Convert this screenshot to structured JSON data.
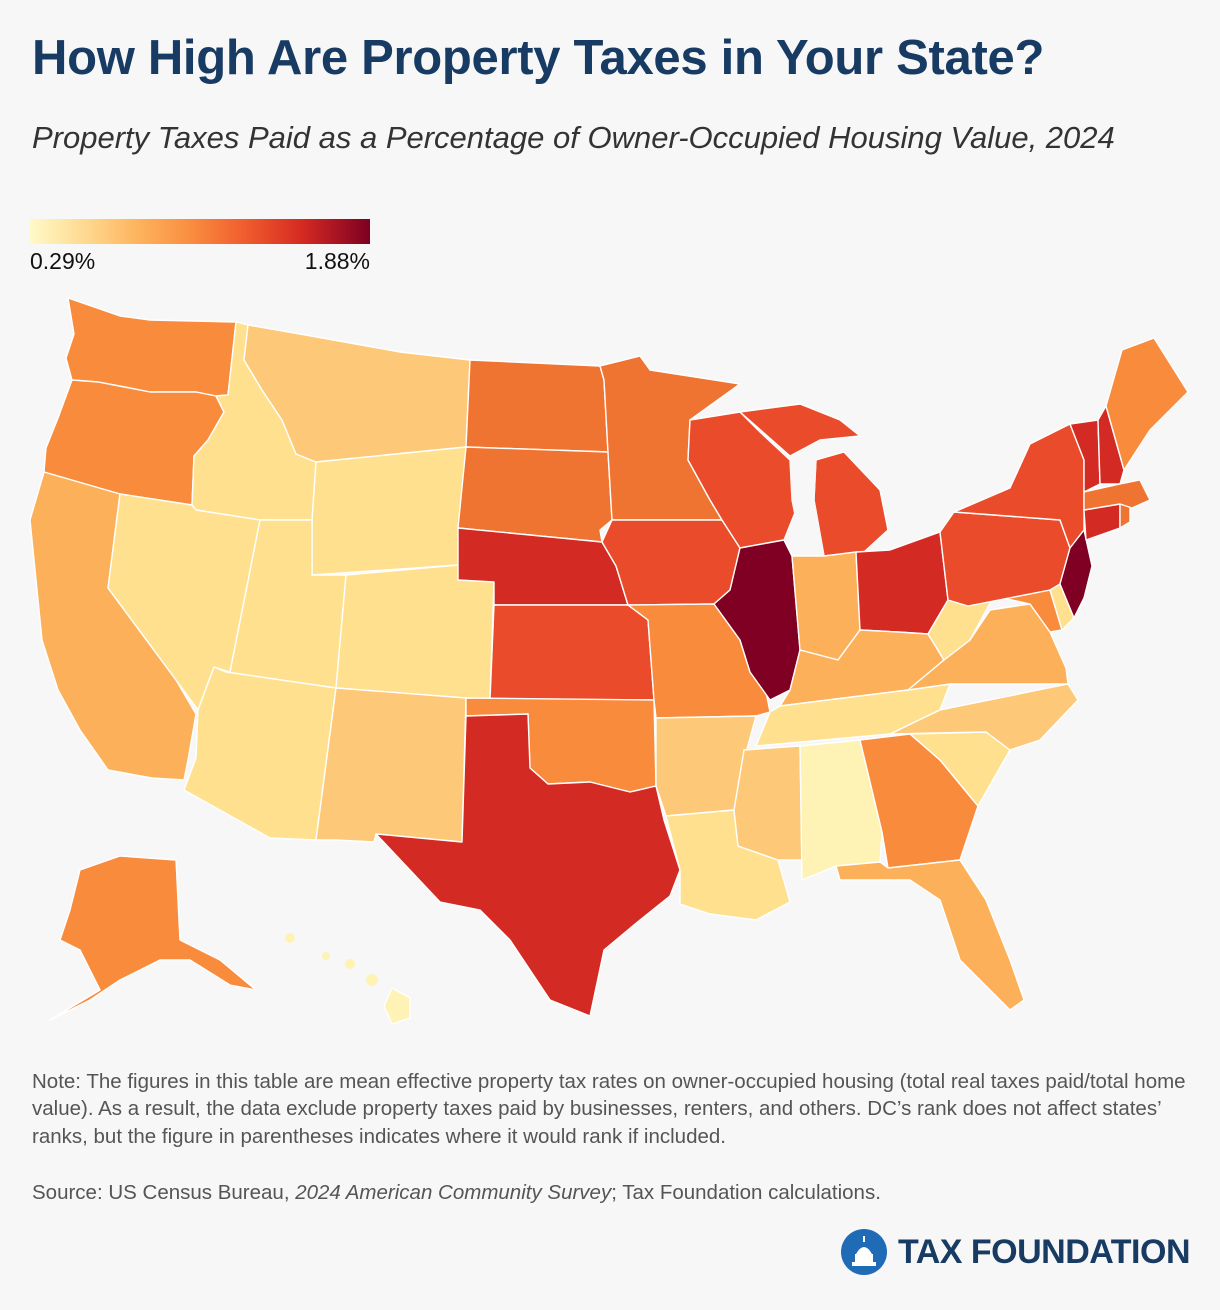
{
  "title": "How High Are Property Taxes in Your State?",
  "subtitle": "Property Taxes Paid as a Percentage of Owner-Occupied Housing Value, 2024",
  "legend": {
    "min_label": "0.29%",
    "max_label": "1.88%"
  },
  "note": "Note: The figures in this table are mean effective property tax rates on owner-occupied housing (total real taxes paid/total home value). As a result, the data exclude property taxes paid by businesses, renters, and others. DC’s rank does not affect states’ ranks, but the figure in parentheses indicates where it would rank if included.",
  "source": {
    "prefix": "Source: US Census Bureau, ",
    "survey": "2024 American Community Survey",
    "suffix": "; Tax Foundation calculations."
  },
  "logo": {
    "text": "TAX FOUNDATION"
  },
  "colors": {
    "title": "#173b63",
    "c0": "#fef3b4",
    "c1": "#fee08f",
    "c2": "#fdc877",
    "c3": "#fcb05a",
    "c4": "#f98b3c",
    "c5": "#f07431",
    "c6": "#ea4b2a",
    "c7": "#d42a24",
    "c8": "#7f0022"
  },
  "map_data": {
    "state_color_class": {
      "WA": "c4",
      "OR": "c4",
      "CA": "c3",
      "ID": "c1",
      "NV": "c1",
      "MT": "c2",
      "WY": "c1",
      "UT": "c1",
      "AZ": "c1",
      "CO": "c1",
      "NM": "c2",
      "ND": "c5",
      "SD": "c5",
      "NE": "c7",
      "KS": "c6",
      "OK": "c4",
      "TX": "c7",
      "MN": "c5",
      "IA": "c6",
      "MO": "c4",
      "AR": "c2",
      "LA": "c1",
      "WI": "c6",
      "IL": "c8",
      "MI": "c6",
      "IN": "c3",
      "OH": "c7",
      "KY": "c3",
      "TN": "c1",
      "MS": "c2",
      "AL": "c0",
      "GA": "c4",
      "FL": "c3",
      "SC": "c1",
      "NC": "c2",
      "VA": "c3",
      "WV": "c1",
      "MD": "c4",
      "DE": "c1",
      "PA": "c6",
      "NY": "c6",
      "NJ": "c8",
      "CT": "c7",
      "RI": "c5",
      "MA": "c5",
      "VT": "c7",
      "NH": "c7",
      "ME": "c4",
      "AK": "c4",
      "HI": "c0"
    }
  }
}
